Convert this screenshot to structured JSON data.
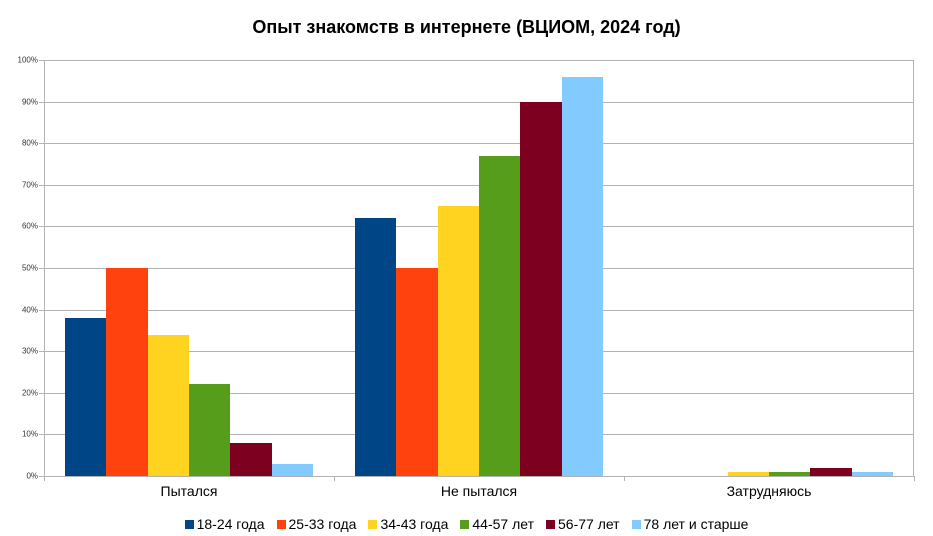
{
  "title": "Опыт знакомств в интернете (ВЦИОМ, 2024 год)",
  "chart_data": {
    "type": "bar",
    "title": "Опыт знакомств в интернете (ВЦИОМ, 2024 год)",
    "xlabel": "",
    "ylabel": "",
    "ylim": [
      0,
      100
    ],
    "y_ticks": [
      "0%",
      "10%",
      "20%",
      "30%",
      "40%",
      "50%",
      "60%",
      "70%",
      "80%",
      "90%",
      "100%"
    ],
    "grid": true,
    "legend_position": "bottom",
    "categories": [
      "Пытался",
      "Не пытался",
      "Затрудняюсь"
    ],
    "series": [
      {
        "name": "18-24 года",
        "color": "#004586",
        "values": [
          38,
          62,
          0
        ]
      },
      {
        "name": "25-33 года",
        "color": "#ff420e",
        "values": [
          50,
          50,
          0
        ]
      },
      {
        "name": "34-43 года",
        "color": "#ffd320",
        "values": [
          34,
          65,
          1
        ]
      },
      {
        "name": "44-57 лет",
        "color": "#579d1c",
        "values": [
          22,
          77,
          1
        ]
      },
      {
        "name": "56-77 лет",
        "color": "#7e0021",
        "values": [
          8,
          90,
          2
        ]
      },
      {
        "name": "78 лет и старше",
        "color": "#83caff",
        "values": [
          3,
          96,
          1
        ]
      }
    ]
  }
}
